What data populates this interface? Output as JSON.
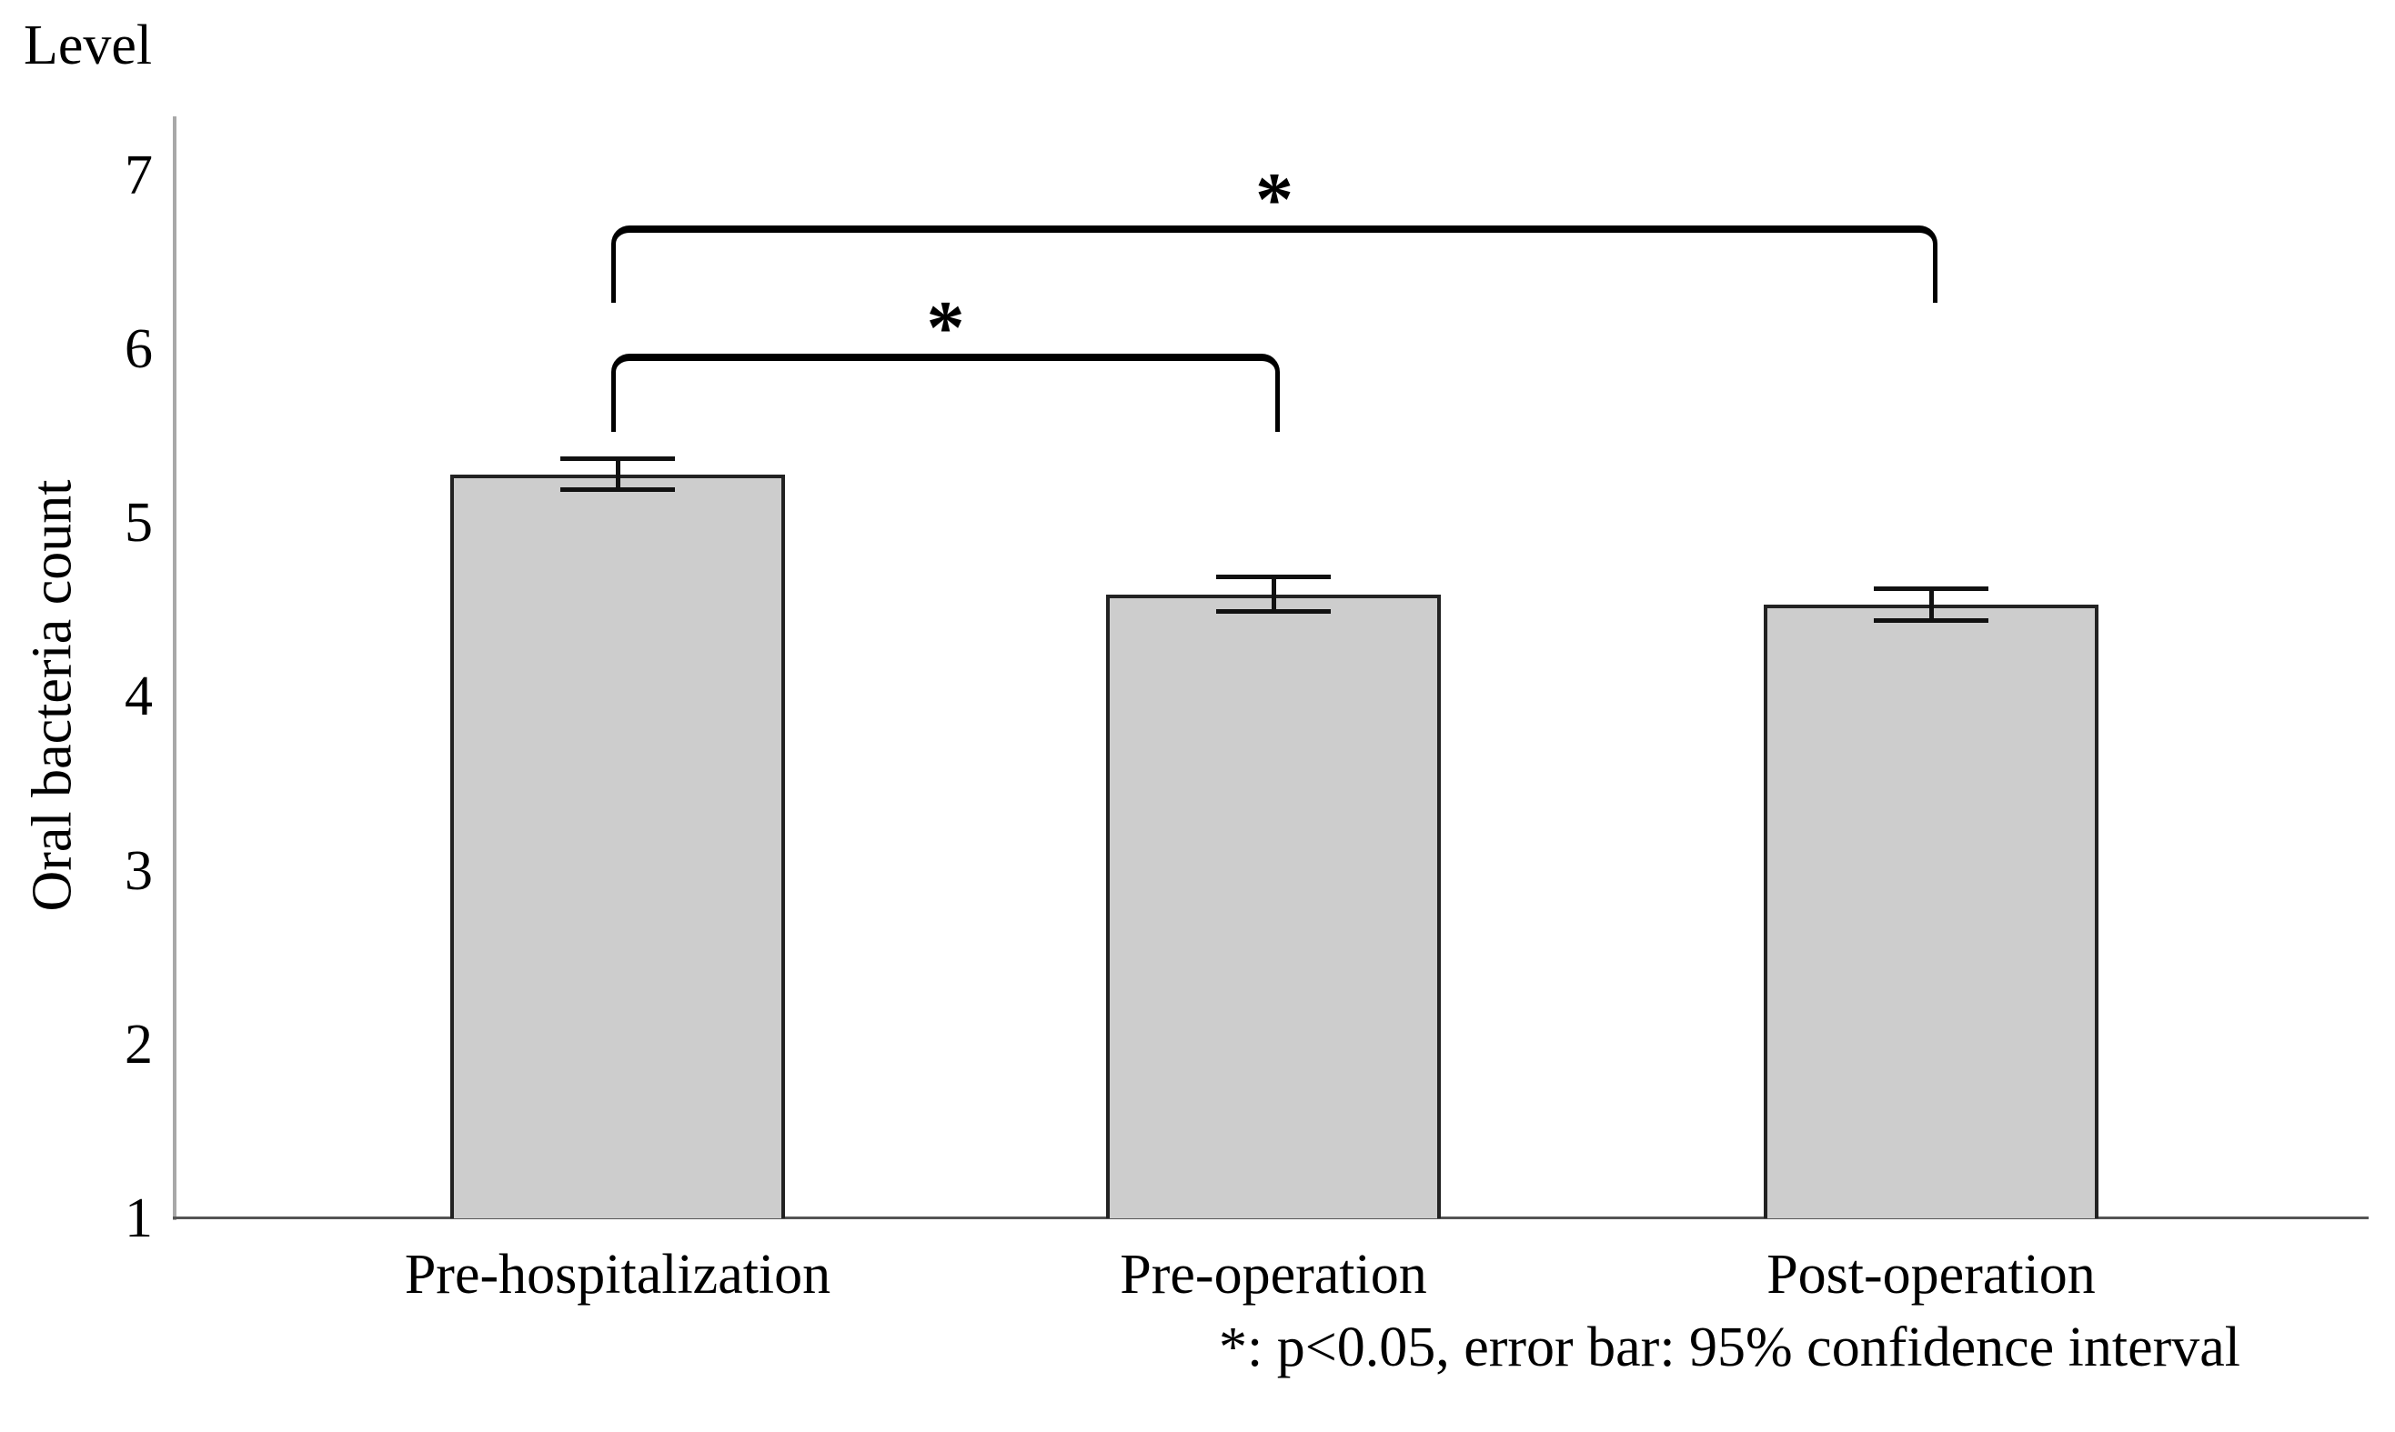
{
  "chart_data": {
    "type": "bar",
    "title": "",
    "corner_label": "Level",
    "ylabel": "Oral bacteria count",
    "xlabel": "",
    "categories": [
      "Pre-hospitalization",
      "Pre-operation",
      "Post-operation"
    ],
    "values": [
      5.28,
      4.59,
      4.53
    ],
    "error_bars": {
      "meaning": "95% confidence interval",
      "upper": [
        5.37,
        4.69,
        4.62
      ],
      "lower": [
        5.19,
        4.49,
        4.44
      ]
    },
    "yticks": [
      7,
      6,
      5,
      4,
      3,
      2,
      1
    ],
    "ylim": [
      1,
      7
    ],
    "grid": false,
    "legend": "none",
    "bar_fill_color": "#cdcdcd",
    "bar_border_color": "#222222",
    "axis_color": "#a8a8a8",
    "baseline_color": "#555555",
    "significance": [
      {
        "between": [
          "Pre-hospitalization",
          "Post-operation"
        ],
        "label": "*"
      },
      {
        "between": [
          "Pre-hospitalization",
          "Pre-operation"
        ],
        "label": "*"
      }
    ],
    "footnote": "*: p<0.05, error bar: 95% confidence interval"
  }
}
